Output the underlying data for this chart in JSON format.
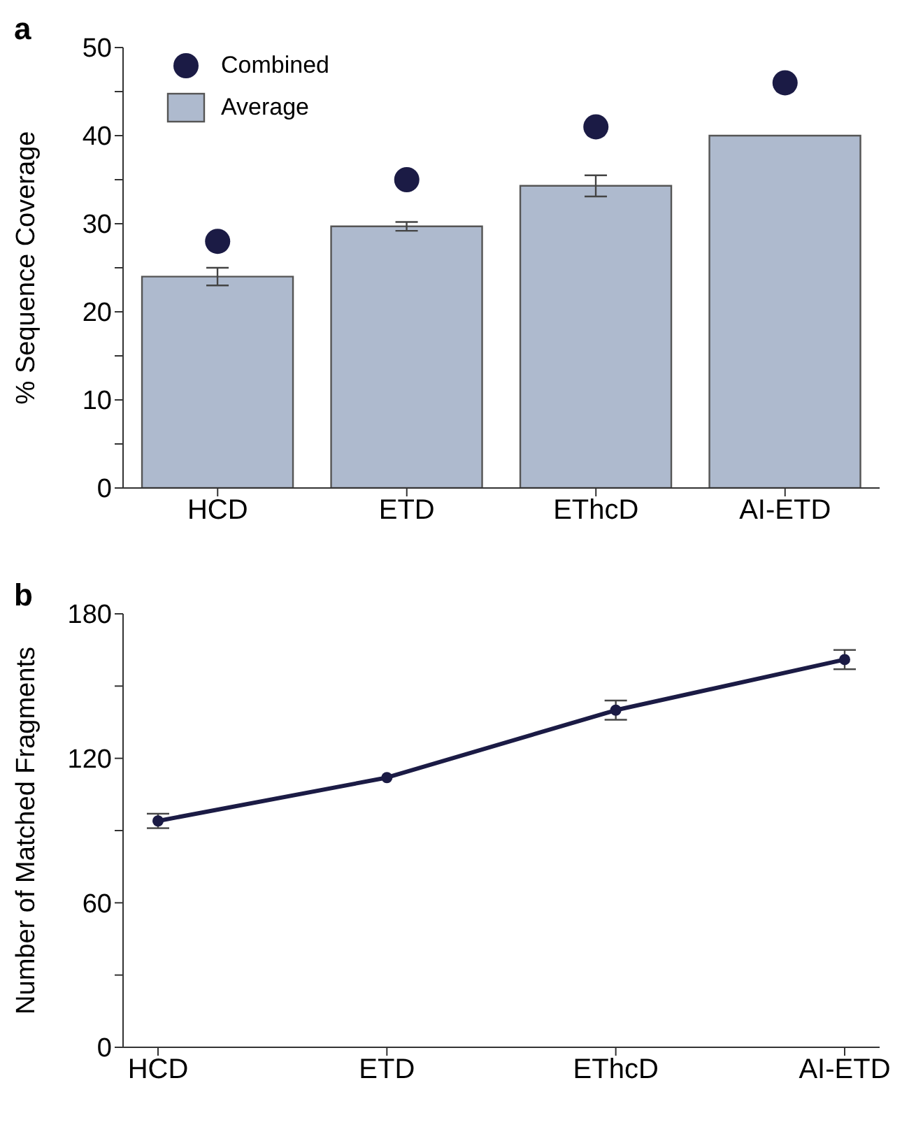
{
  "chart_data": [
    {
      "type": "bar",
      "title": "a",
      "ylabel": "% Sequence Coverage",
      "categories": [
        "HCD",
        "ETD",
        "EThcD",
        "AI-ETD"
      ],
      "series": [
        {
          "name": "Average",
          "type": "bar",
          "color": "#aebace",
          "values": [
            24,
            29.7,
            34.3,
            40
          ],
          "errors": [
            1,
            0.5,
            1.2,
            null
          ]
        },
        {
          "name": "Combined",
          "type": "scatter",
          "color": "#1b1b45",
          "values": [
            28,
            35,
            41,
            46
          ],
          "marker": "circle"
        }
      ],
      "ylim": [
        0,
        50
      ],
      "yticks": [
        0,
        {
          "value": 5,
          "label": null
        },
        10,
        {
          "value": 15,
          "label": null
        },
        20,
        {
          "value": 25,
          "label": null
        },
        30,
        {
          "value": 35,
          "label": null
        },
        40,
        {
          "value": 45,
          "label": null
        },
        50
      ],
      "legend": "top left",
      "grid": false
    },
    {
      "type": "line",
      "title": "b",
      "ylabel": "Number of Matched Fragments",
      "categories": [
        "HCD",
        "ETD",
        "EThcD",
        "AI-ETD"
      ],
      "series": [
        {
          "color": "#1b1b45",
          "values": [
            94,
            112,
            140,
            161
          ],
          "errors": [
            3,
            null,
            4,
            4
          ]
        }
      ],
      "ylim": [
        0,
        180
      ],
      "yticks": [
        0,
        {
          "value": 30,
          "label": null
        },
        60,
        {
          "value": 90,
          "label": null
        },
        120,
        {
          "value": 150,
          "label": null
        },
        180
      ],
      "marker": "circle",
      "line_style": "solid",
      "grid": false
    }
  ]
}
